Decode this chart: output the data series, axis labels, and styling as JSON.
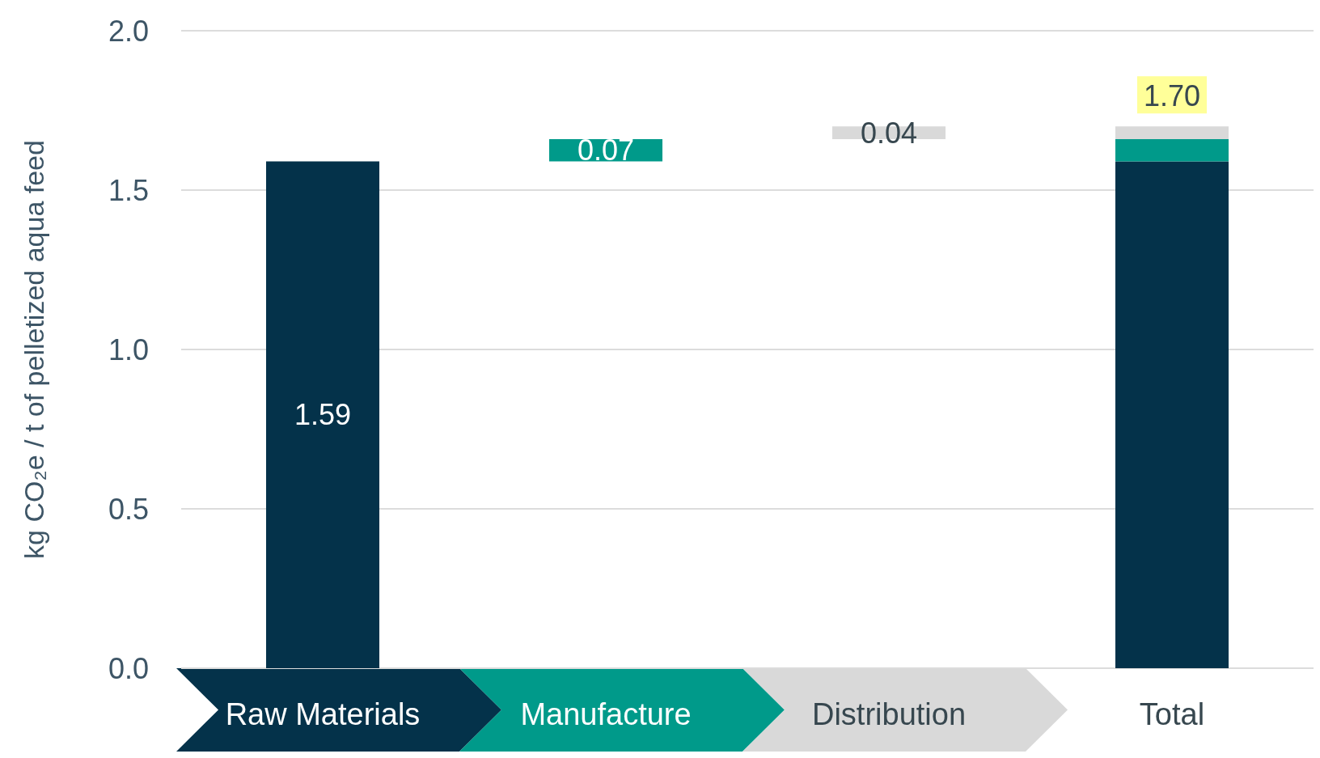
{
  "chart_data": {
    "type": "bar",
    "stacked": true,
    "ylabel": "kg CO₂e / t of pelletized aqua feed",
    "categories": [
      "Raw Materials",
      "Manufacture",
      "Distribution",
      "Total"
    ],
    "series": [
      {
        "color": "#04324a",
        "values": [
          1.59,
          null,
          null,
          1.59
        ],
        "value_labels": [
          "1.59",
          null,
          null,
          null
        ]
      },
      {
        "color": "#009a8a",
        "values": [
          null,
          0.07,
          null,
          0.07
        ],
        "base": [
          null,
          1.59,
          null,
          null
        ],
        "value_labels": [
          null,
          "0.07",
          null,
          null
        ]
      },
      {
        "color": "#d9d9d9",
        "values": [
          null,
          null,
          0.04,
          0.04
        ],
        "base": [
          null,
          null,
          1.66,
          null
        ],
        "value_labels": [
          null,
          null,
          "0.04",
          null
        ]
      }
    ],
    "totals": [
      null,
      null,
      null,
      "1.70"
    ],
    "ylim": [
      0,
      2
    ],
    "yticks": [
      {
        "value": 0,
        "label": "0.0"
      },
      {
        "value": 0.5,
        "label": "0.5"
      },
      {
        "value": 1,
        "label": "1.0"
      },
      {
        "value": 1.5,
        "label": "1.5"
      },
      {
        "value": 2,
        "label": "2.0"
      }
    ],
    "grid": "y"
  }
}
